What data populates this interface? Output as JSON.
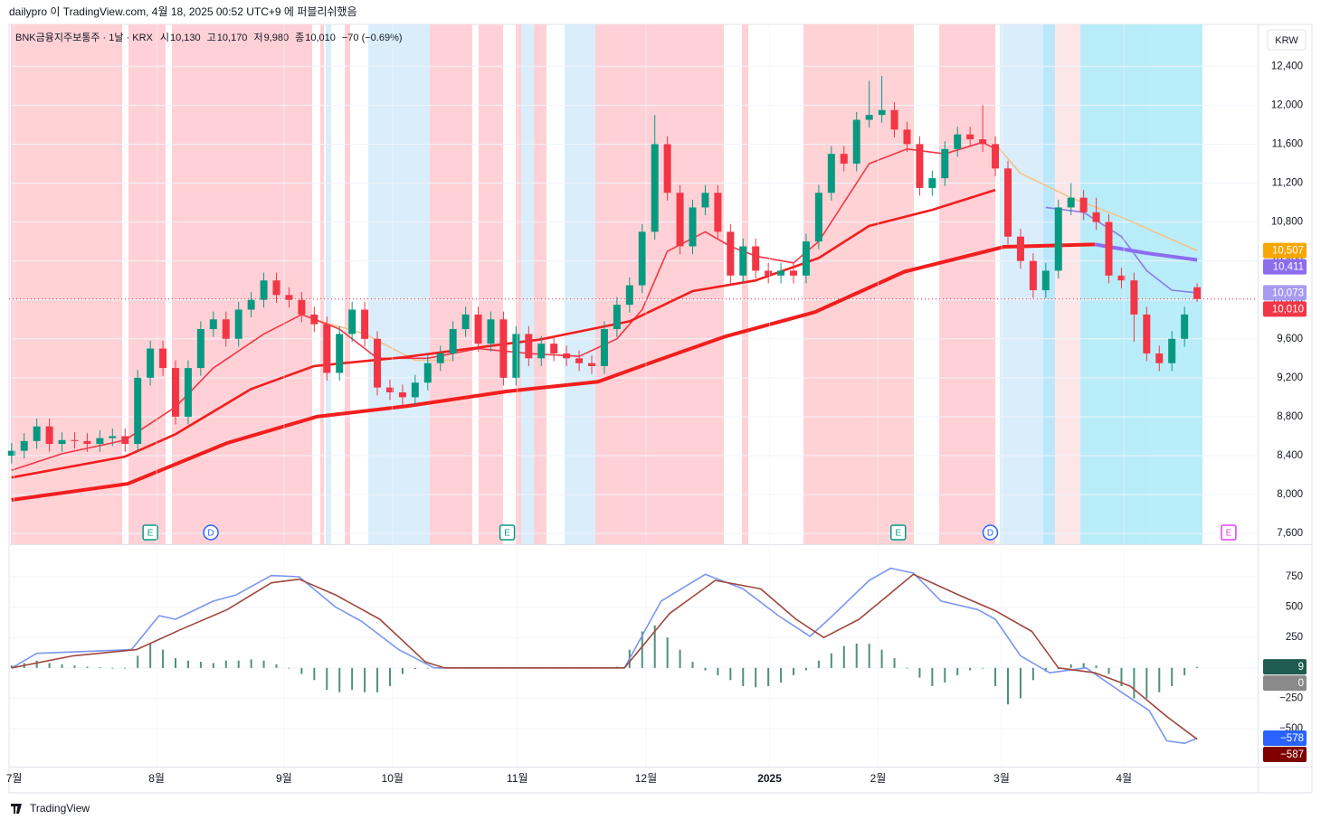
{
  "header": {
    "published": "dailypro 이 TradingView.com, 4월 18, 2025 00:52 UTC+9 에 퍼블리쉬했음",
    "symbol": "BNK금융지주보통주 · 1날 · KRX",
    "ohlc": [
      {
        "key": "시",
        "value": "10,130"
      },
      {
        "key": "고",
        "value": "10,170"
      },
      {
        "key": "저",
        "value": "9,980"
      },
      {
        "key": "종",
        "value": "10,010"
      }
    ],
    "change": "−70 (−0.69%)",
    "currency": "KRW",
    "footer": "TradingView"
  },
  "chart_data": [
    {
      "type": "candlestick",
      "xlim": [
        -0.2,
        98.8
      ],
      "xticks": [
        {
          "value": 0.2,
          "label": "7월"
        },
        {
          "value": 11.5,
          "label": "8월"
        },
        {
          "value": 21.6,
          "label": "9월"
        },
        {
          "value": 30.2,
          "label": "10월"
        },
        {
          "value": 40.1,
          "label": "11월"
        },
        {
          "value": 50.3,
          "label": "12월"
        },
        {
          "value": 60.1,
          "label": "2025"
        },
        {
          "value": 68.7,
          "label": "2월"
        },
        {
          "value": 78.5,
          "label": "3월"
        },
        {
          "value": 88.2,
          "label": "4월"
        }
      ],
      "ylim": [
        7490,
        12830
      ],
      "yticks": [
        {
          "value": 7600,
          "label": "7,600"
        },
        {
          "value": 8000,
          "label": "8,000"
        },
        {
          "value": 8400,
          "label": "8,400"
        },
        {
          "value": 8800,
          "label": "8,800"
        },
        {
          "value": 9200,
          "label": "9,200"
        },
        {
          "value": 9600,
          "label": "9,600"
        },
        {
          "value": 10000,
          "label": "10,000"
        },
        {
          "value": 10400,
          "label": "10,400"
        },
        {
          "value": 10800,
          "label": "10,800"
        },
        {
          "value": 11200,
          "label": "11,200"
        },
        {
          "value": 11600,
          "label": "11,600"
        },
        {
          "value": 12000,
          "label": "12,000"
        },
        {
          "value": 12400,
          "label": "12,400"
        }
      ],
      "up_color": "#089981",
      "down_color": "#f23645",
      "open": [
        8400,
        8450,
        8550,
        8700,
        8520,
        8560,
        8550,
        8520,
        8580,
        8600,
        8520,
        9200,
        9500,
        9300,
        8800,
        9300,
        9700,
        9800,
        9600,
        9900,
        10000,
        10200,
        10050,
        10000,
        9850,
        9750,
        9250,
        9650,
        9900,
        9600,
        9100,
        9050,
        9000,
        9150,
        9350,
        9450,
        9700,
        9850,
        9550,
        9800,
        9200,
        9650,
        9400,
        9550,
        9450,
        9400,
        9350,
        9320,
        9700,
        9950,
        10150,
        10700,
        11600,
        11100,
        10550,
        10950,
        11100,
        10700,
        10250,
        10550,
        10300,
        10250,
        10300,
        10250,
        10600,
        11100,
        11500,
        11400,
        11850,
        11900,
        11950,
        11750,
        11600,
        11150,
        11250,
        11550,
        11700,
        11650,
        11600,
        11350,
        10650,
        10400,
        10100,
        10300,
        10950,
        11050,
        10900,
        10800,
        10250,
        10200,
        9850,
        9450,
        9350,
        9600,
        10130
      ],
      "high": [
        8530,
        8630,
        8780,
        8780,
        8640,
        8640,
        8630,
        8660,
        8680,
        8680,
        9280,
        9580,
        9580,
        9380,
        9380,
        9780,
        9880,
        9880,
        9980,
        10080,
        10280,
        10280,
        10130,
        10080,
        9930,
        9830,
        9730,
        9980,
        9980,
        9680,
        9180,
        9130,
        9230,
        9430,
        9530,
        9780,
        9930,
        9930,
        9880,
        9880,
        9730,
        9730,
        9630,
        9630,
        9530,
        9480,
        9430,
        9780,
        10030,
        10230,
        10780,
        11900,
        11680,
        11180,
        11030,
        11180,
        11180,
        10780,
        10630,
        10630,
        10380,
        10380,
        10380,
        10680,
        11180,
        11580,
        11580,
        11930,
        12250,
        12300,
        12030,
        11830,
        11680,
        11330,
        11630,
        11780,
        11780,
        12000,
        11680,
        11430,
        10730,
        10480,
        10380,
        11030,
        11200,
        11130,
        11050,
        10880,
        10330,
        10280,
        9930,
        9530,
        9680,
        9930,
        10170
      ],
      "low": [
        8320,
        8370,
        8470,
        8440,
        8440,
        8470,
        8440,
        8440,
        8500,
        8440,
        8440,
        9120,
        9220,
        8720,
        8720,
        9220,
        9620,
        9520,
        9520,
        9820,
        9920,
        9970,
        9920,
        9770,
        9670,
        9170,
        9170,
        9570,
        9520,
        9020,
        8970,
        8920,
        8920,
        9070,
        9270,
        9370,
        9620,
        9470,
        9470,
        9120,
        9120,
        9320,
        9320,
        9370,
        9320,
        9270,
        9240,
        9240,
        9620,
        9870,
        10070,
        10620,
        11020,
        10470,
        10470,
        10870,
        10620,
        10170,
        10170,
        10220,
        10170,
        10170,
        10170,
        10170,
        10520,
        11020,
        11320,
        11320,
        11770,
        11820,
        11670,
        11520,
        11070,
        11070,
        11170,
        11470,
        11570,
        11520,
        11270,
        10570,
        10320,
        10020,
        10020,
        10220,
        10870,
        10820,
        10720,
        10170,
        10120,
        9570,
        9370,
        9270,
        9270,
        9520,
        9980
      ],
      "close": [
        8450,
        8550,
        8700,
        8520,
        8560,
        8550,
        8520,
        8580,
        8600,
        8520,
        9200,
        9500,
        9300,
        8800,
        9300,
        9700,
        9800,
        9600,
        9900,
        10000,
        10200,
        10050,
        10000,
        9850,
        9750,
        9250,
        9650,
        9900,
        9600,
        9100,
        9050,
        9000,
        9150,
        9350,
        9450,
        9700,
        9850,
        9550,
        9800,
        9200,
        9650,
        9400,
        9550,
        9450,
        9400,
        9350,
        9320,
        9700,
        9950,
        10150,
        10700,
        11600,
        11100,
        10550,
        10950,
        11100,
        10700,
        10250,
        10550,
        10300,
        10250,
        10300,
        10250,
        10600,
        11100,
        11500,
        11400,
        11850,
        11900,
        11950,
        11750,
        11600,
        11150,
        11250,
        11550,
        11700,
        11650,
        11600,
        11350,
        10650,
        10400,
        10100,
        10300,
        10950,
        11050,
        10900,
        10800,
        10250,
        10200,
        9850,
        9450,
        9350,
        9600,
        9850,
        10010
      ],
      "lines": [
        {
          "color": "#f0c48a",
          "width": 1.6,
          "x": [
            24,
            28,
            32,
            35,
            50,
            78,
            80,
            84,
            88,
            92,
            94
          ],
          "values": [
            9800,
            9650,
            9380,
            9380,
            null,
            11600,
            11300,
            11050,
            10850,
            10620,
            10507
          ]
        },
        {
          "color": "#f23645",
          "width": 1.6,
          "x": [
            0,
            4,
            9,
            13,
            16,
            20,
            23,
            26,
            29,
            33,
            37,
            41,
            45,
            48,
            50,
            52,
            55,
            57,
            59,
            62,
            64,
            66,
            68,
            71,
            74,
            77,
            78
          ],
          "values": [
            8250,
            8420,
            8560,
            8900,
            9300,
            9650,
            9850,
            9700,
            9400,
            9400,
            9500,
            9450,
            9420,
            9600,
            9900,
            10500,
            10700,
            10550,
            10450,
            10380,
            10600,
            11000,
            11400,
            11550,
            11500,
            11620,
            11550
          ]
        },
        {
          "color": "#f21e1e",
          "width": 2.6,
          "x": [
            0,
            9,
            13,
            19,
            24,
            31,
            42,
            49,
            54,
            59,
            64,
            68,
            73,
            78
          ],
          "values": [
            8175,
            8390,
            8620,
            9085,
            9320,
            9410,
            9595,
            9780,
            10090,
            10200,
            10430,
            10760,
            10925,
            11130
          ]
        },
        {
          "color": "#f21e1e",
          "width": 4,
          "x": [
            0,
            9.2,
            17.1,
            24.2,
            31.4,
            39.3,
            46.5,
            50.8,
            56.5,
            63.7,
            70.8,
            78.7,
            85.9
          ],
          "values": [
            7945,
            8110,
            8530,
            8800,
            8910,
            9060,
            9160,
            9360,
            9620,
            9875,
            10290,
            10545,
            10570
          ]
        },
        {
          "color": "#8c7be8",
          "width": 1.6,
          "x": [
            82,
            85,
            88,
            90,
            92,
            94
          ],
          "values": [
            10950,
            10900,
            10650,
            10300,
            10100,
            10073
          ]
        },
        {
          "color": "#8c6df0",
          "width": 4,
          "x": [
            85.9,
            90,
            94
          ],
          "values": [
            10570,
            10480,
            10411
          ]
        }
      ],
      "last_price": 10010,
      "badges": [
        {
          "value": 10507,
          "label": "10,507",
          "color": "#f7a600"
        },
        {
          "value": 10411,
          "label": "10,411",
          "color": "#8c6df0"
        },
        {
          "value": 10073,
          "label": "10,073",
          "color": "#a89af0"
        },
        {
          "value": 10010,
          "label": "10,010",
          "color": "#f23645"
        }
      ],
      "events": [
        {
          "label": "E",
          "x": 11.0,
          "color": "#089981"
        },
        {
          "label": "D",
          "x": 15.8,
          "color": "#2962ff"
        },
        {
          "label": "E",
          "x": 39.3,
          "color": "#089981"
        },
        {
          "label": "E",
          "x": 70.3,
          "color": "#089981"
        },
        {
          "label": "D",
          "x": 77.6,
          "color": "#2962ff"
        },
        {
          "label": "E",
          "x": 96.5,
          "color": "#e040fb"
        }
      ]
    },
    {
      "type": "macd",
      "xlim": [
        -0.2,
        98.8
      ],
      "ylim": [
        -812,
        1010
      ],
      "yticks": [
        {
          "value": -500,
          "label": "−500"
        },
        {
          "value": -250,
          "label": "−250"
        },
        0,
        250,
        500,
        750
      ],
      "histogram_color": "#4f8f7d",
      "histogram": [
        20,
        40,
        60,
        40,
        30,
        20,
        10,
        5,
        0,
        -5,
        100,
        200,
        150,
        80,
        60,
        50,
        40,
        60,
        60,
        70,
        60,
        30,
        0,
        -50,
        -100,
        -180,
        -200,
        -180,
        -200,
        -200,
        -150,
        -50,
        -10,
        0,
        0,
        0,
        0,
        0,
        5,
        0,
        0,
        0,
        0,
        0,
        0,
        0,
        0,
        0,
        10,
        150,
        300,
        350,
        250,
        150,
        50,
        -20,
        -60,
        -100,
        -150,
        -160,
        -150,
        -120,
        -60,
        -20,
        60,
        120,
        180,
        200,
        200,
        150,
        80,
        0,
        -80,
        -150,
        -120,
        -60,
        -20,
        0,
        -150,
        -300,
        -250,
        -100,
        -30,
        -10,
        30,
        40,
        20,
        -50,
        -150,
        -250,
        -250,
        -200,
        -150,
        -60,
        9
      ],
      "series": [
        {
          "color": "#7a96f0",
          "x": [
            0,
            2,
            9.5,
            11.7,
            13,
            16,
            17.8,
            20.6,
            22.8,
            25.7,
            27.8,
            30.7,
            33.5,
            48.6,
            51.5,
            55,
            58,
            60.8,
            63.3,
            65,
            68,
            69.7,
            71.5,
            73.7,
            76.6,
            78,
            80,
            82.3,
            85.2,
            88,
            90.2,
            91.6,
            93,
            94
          ],
          "values": [
            0,
            120,
            150,
            430,
            400,
            550,
            600,
            760,
            750,
            500,
            380,
            150,
            0,
            0,
            550,
            770,
            650,
            430,
            260,
            420,
            720,
            820,
            780,
            550,
            480,
            400,
            100,
            -40,
            0,
            -200,
            -350,
            -600,
            -620,
            -578
          ]
        },
        {
          "color": "#a0463c",
          "x": [
            0,
            4.9,
            9.9,
            13.5,
            17.1,
            20.6,
            22.8,
            25.7,
            29.2,
            32.8,
            34.3,
            48.6,
            52.2,
            55.8,
            59.4,
            62.2,
            64.4,
            67.2,
            71.5,
            75.1,
            78,
            80.9,
            83,
            85.9,
            88.7,
            91.6,
            94
          ],
          "values": [
            0,
            100,
            150,
            320,
            480,
            700,
            730,
            600,
            400,
            50,
            0,
            0,
            450,
            720,
            650,
            400,
            250,
            400,
            770,
            600,
            470,
            300,
            0,
            -40,
            -150,
            -400,
            -587
          ]
        }
      ],
      "badges": [
        {
          "value": 9,
          "label": "9",
          "color": "#1e5c4f"
        },
        {
          "value": 0,
          "label": "0",
          "color": "#8a8a8a"
        },
        {
          "value": -578,
          "label": "−578",
          "color": "#2962ff"
        },
        {
          "value": -587,
          "label": "−587",
          "color": "#800000"
        }
      ]
    }
  ]
}
